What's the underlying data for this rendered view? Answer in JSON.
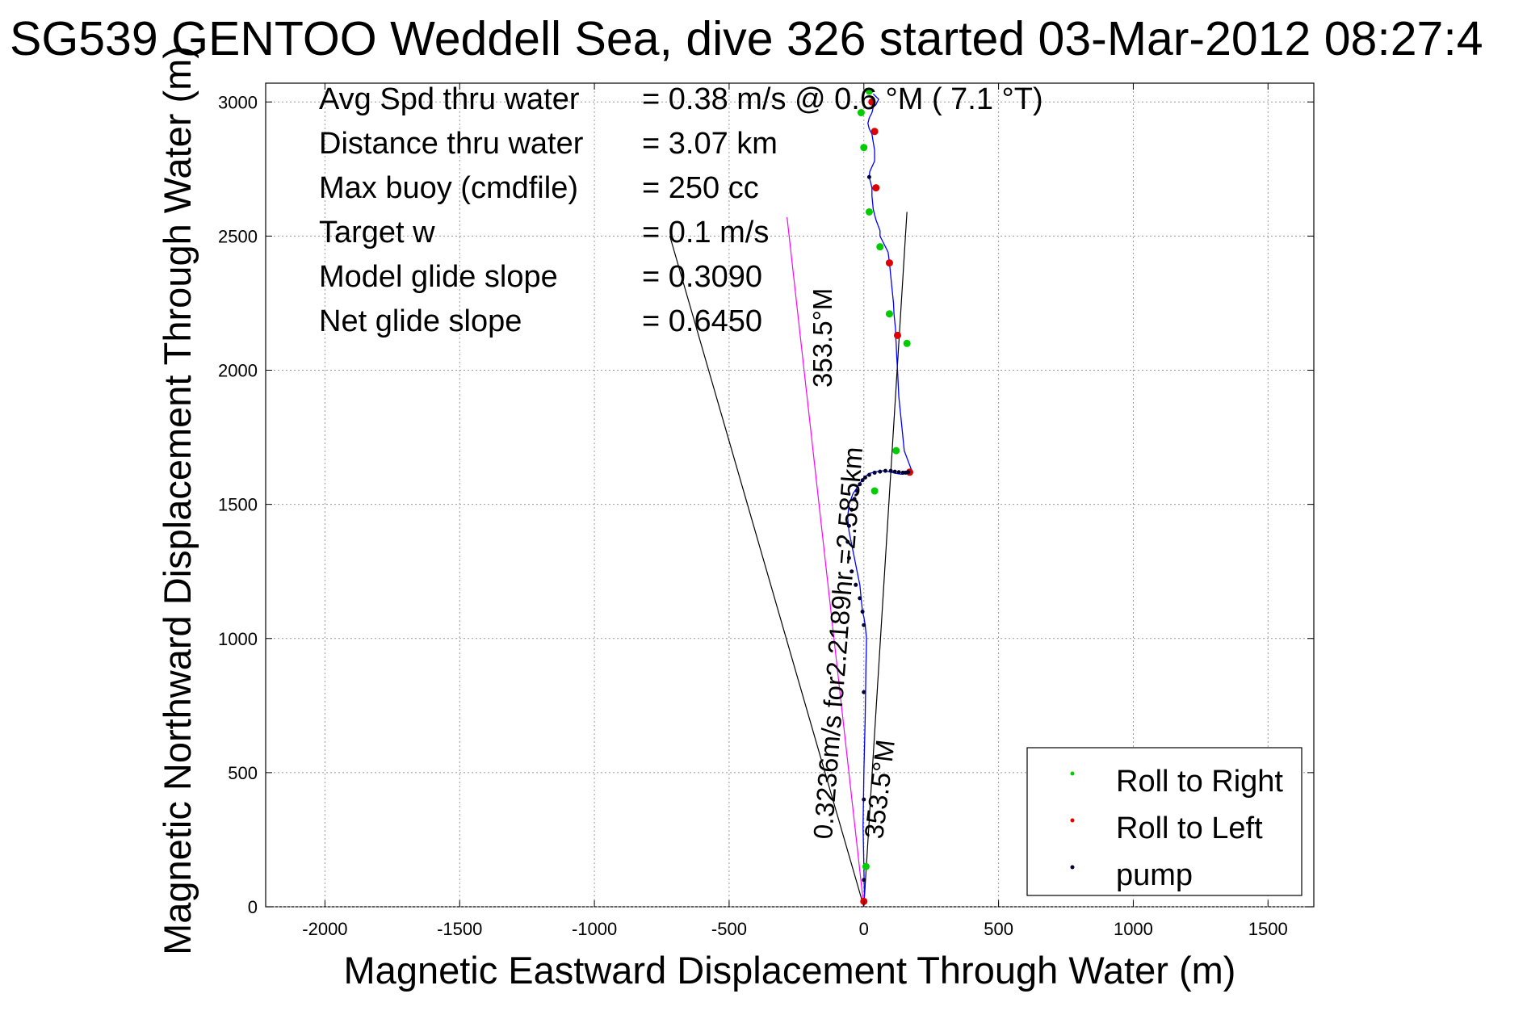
{
  "chart_data": {
    "type": "line",
    "title": "SG539 GENTOO Weddell Sea, dive 326 started 03-Mar-2012 08:27:4",
    "xlabel": "Magnetic Eastward Displacement Through Water (m)",
    "ylabel": "Magnetic Northward Displacement Through Water (m)",
    "xlim": [
      -2220,
      1670
    ],
    "ylim": [
      0,
      3070
    ],
    "xticks": [
      -2000,
      -1500,
      -1000,
      -500,
      0,
      500,
      1000,
      1500
    ],
    "yticks": [
      0,
      500,
      1000,
      1500,
      2000,
      2500,
      3000
    ],
    "xtick_labels": [
      "-2000",
      "-1500",
      "-1000",
      "-500",
      "0",
      "500",
      "1000",
      "1500"
    ],
    "ytick_labels": [
      "0",
      "500",
      "1000",
      "1500",
      "2000",
      "2500",
      "3000"
    ],
    "grid": true,
    "legend_position": "bottom-right",
    "stats": [
      {
        "label": "Avg Spd thru water",
        "value": "=  0.38 m/s @   0.6 °M (  7.1 °T)"
      },
      {
        "label": "Distance thru water",
        "value": "=  3.07 km"
      },
      {
        "label": "Max buoy (cmdfile)",
        "value": "= 250 cc"
      },
      {
        "label": "Target w",
        "value": "= 0.1 m/s"
      },
      {
        "label": "Model glide slope",
        "value": "= 0.3090"
      },
      {
        "label": "Net glide slope",
        "value": "= 0.6450"
      }
    ],
    "annotations": {
      "heading_label": "353.5°M",
      "current_label": "0.3236m/s for2.2189hr =2.585km",
      "current_heading_label": "353.5°M"
    },
    "guide_lines": [
      {
        "name": "glide-cone-left",
        "x": [
          0,
          -720
        ],
        "y": [
          0,
          2500
        ]
      },
      {
        "name": "glide-cone-right",
        "x": [
          0,
          160
        ],
        "y": [
          0,
          2590
        ]
      },
      {
        "name": "current-vector",
        "x": [
          0,
          -285
        ],
        "y": [
          0,
          2570
        ]
      }
    ],
    "series": [
      {
        "name": "track",
        "color": "#0000ff",
        "x": [
          0,
          2,
          0,
          -3,
          0,
          5,
          8,
          10,
          5,
          0,
          -5,
          -10,
          -15,
          -25,
          -35,
          -45,
          -55,
          -60,
          -55,
          -40,
          -20,
          0,
          20,
          40,
          60,
          80,
          100,
          120,
          140,
          160,
          180,
          150,
          140,
          130,
          125,
          122,
          120,
          118,
          118,
          115,
          112,
          110,
          105,
          100,
          95,
          90,
          80,
          70,
          60,
          60,
          45,
          35,
          30,
          30,
          25,
          20,
          22,
          40,
          40,
          35,
          30,
          20,
          15,
          20,
          30,
          35,
          45,
          50,
          55,
          35
        ],
        "y": [
          0,
          50,
          150,
          300,
          500,
          700,
          900,
          1000,
          1050,
          1080,
          1100,
          1150,
          1200,
          1250,
          1300,
          1350,
          1400,
          1450,
          1500,
          1540,
          1570,
          1600,
          1615,
          1620,
          1625,
          1625,
          1620,
          1615,
          1612,
          1615,
          1620,
          1700,
          1800,
          1900,
          2000,
          2050,
          2100,
          2130,
          2150,
          2180,
          2210,
          2250,
          2300,
          2350,
          2400,
          2440,
          2460,
          2480,
          2500,
          2520,
          2560,
          2600,
          2650,
          2680,
          2700,
          2720,
          2740,
          2780,
          2820,
          2850,
          2880,
          2900,
          2920,
          2940,
          2960,
          2980,
          2990,
          3000,
          3010,
          3030
        ]
      }
    ],
    "markers": [
      {
        "name": "Roll to Right",
        "color": "#00cc00",
        "x": [
          8,
          40,
          120,
          160,
          95,
          60,
          20,
          0,
          -10,
          20
        ],
        "y": [
          150,
          1550,
          1700,
          2100,
          2210,
          2460,
          2590,
          2830,
          2960,
          3040
        ]
      },
      {
        "name": "Roll to Left",
        "color": "#dd0000",
        "x": [
          0,
          170,
          125,
          95,
          45,
          40,
          30
        ],
        "y": [
          20,
          1620,
          2130,
          2400,
          2680,
          2890,
          3000
        ]
      },
      {
        "name": "pump",
        "color": "#000033",
        "x": [
          0,
          0,
          0,
          0,
          -5,
          -15,
          -30,
          -45,
          -55,
          -60,
          -55,
          -45,
          -35,
          -25,
          -15,
          -5,
          5,
          20,
          40,
          60,
          80,
          100,
          115,
          130,
          145,
          155,
          165,
          20
        ],
        "y": [
          100,
          400,
          800,
          1050,
          1100,
          1150,
          1200,
          1250,
          1300,
          1360,
          1420,
          1480,
          1520,
          1550,
          1575,
          1590,
          1600,
          1610,
          1618,
          1622,
          1625,
          1625,
          1622,
          1620,
          1618,
          1618,
          1620,
          2720
        ]
      }
    ],
    "legend": [
      "Roll to Right",
      "Roll to Left",
      "pump"
    ]
  }
}
